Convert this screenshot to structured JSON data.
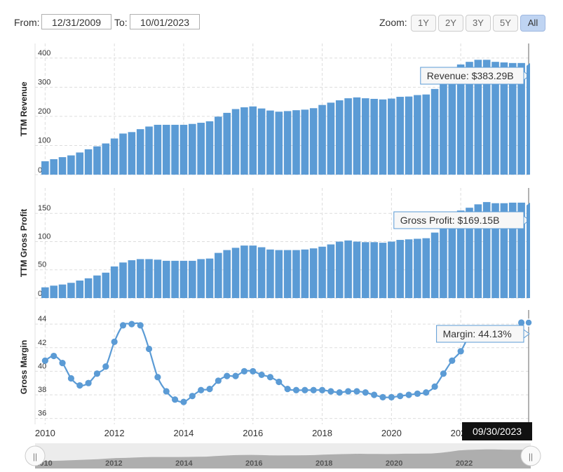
{
  "controls": {
    "from_label": "From:",
    "from_value": "12/31/2009",
    "to_label": "To:",
    "to_value": "10/01/2023",
    "zoom_label": "Zoom:",
    "zoom_buttons": [
      "1Y",
      "2Y",
      "3Y",
      "5Y",
      "All"
    ],
    "zoom_active": "All"
  },
  "chart_data": [
    {
      "type": "bar",
      "ylabel": "TTM Revenue",
      "ylim": [
        0,
        450
      ],
      "yticks": [
        0,
        100,
        200,
        300,
        400
      ],
      "xlim": [
        2009.75,
        2023.9
      ],
      "tooltip": "Revenue: $383.29B",
      "values": [
        46,
        53,
        60,
        66,
        76,
        87,
        97,
        107,
        124,
        141,
        146,
        156,
        165,
        171,
        171,
        171,
        171,
        174,
        178,
        183,
        199,
        212,
        225,
        231,
        234,
        227,
        220,
        216,
        218,
        221,
        223,
        228,
        239,
        247,
        255,
        262,
        265,
        262,
        260,
        258,
        261,
        267,
        268,
        273,
        275,
        294,
        325,
        365,
        378,
        387,
        394,
        394,
        387,
        385,
        383,
        383
      ]
    },
    {
      "type": "bar",
      "ylabel": "TTM Gross Profit",
      "ylim": [
        0,
        195
      ],
      "yticks": [
        0,
        50,
        100,
        150
      ],
      "xlim": [
        2009.75,
        2023.9
      ],
      "tooltip": "Gross Profit: $169.15B",
      "values": [
        19,
        22,
        24,
        27,
        31,
        35,
        40,
        45,
        56,
        63,
        67,
        69,
        69,
        68,
        66,
        66,
        66,
        66,
        69,
        70,
        80,
        85,
        89,
        93,
        93,
        90,
        86,
        85,
        85,
        85,
        86,
        88,
        91,
        95,
        100,
        102,
        100,
        99,
        99,
        98,
        100,
        103,
        104,
        105,
        106,
        116,
        130,
        146,
        155,
        160,
        166,
        170,
        168,
        168,
        169,
        169
      ]
    },
    {
      "type": "line",
      "ylabel": "Gross Margin",
      "ylim": [
        35.5,
        45.2
      ],
      "yticks": [
        36,
        38,
        40,
        42,
        44
      ],
      "xlim": [
        2009.75,
        2023.9
      ],
      "xticks": [
        2010,
        2012,
        2014,
        2016,
        2018,
        2020,
        2022
      ],
      "tooltip": "Margin: 44.13%",
      "values": [
        40.9,
        41.3,
        40.7,
        39.4,
        38.8,
        39.0,
        39.8,
        40.4,
        42.5,
        43.9,
        44.0,
        43.9,
        41.9,
        39.5,
        38.3,
        37.6,
        37.4,
        37.9,
        38.4,
        38.5,
        39.2,
        39.6,
        39.6,
        40.0,
        40.0,
        39.7,
        39.5,
        39.1,
        38.5,
        38.4,
        38.4,
        38.4,
        38.4,
        38.3,
        38.2,
        38.3,
        38.3,
        38.2,
        38.0,
        37.8,
        37.8,
        37.9,
        38.0,
        38.1,
        38.2,
        38.7,
        39.8,
        40.9,
        41.7,
        43.0,
        43.3,
        43.3,
        43.3,
        43.0,
        43.1,
        44.13
      ]
    }
  ],
  "cursor_date": "09/30/2023",
  "navigator": {
    "labels": [
      "2010",
      "2012",
      "2014",
      "2016",
      "2018",
      "2020",
      "2022"
    ],
    "handle_glyph": "||"
  }
}
